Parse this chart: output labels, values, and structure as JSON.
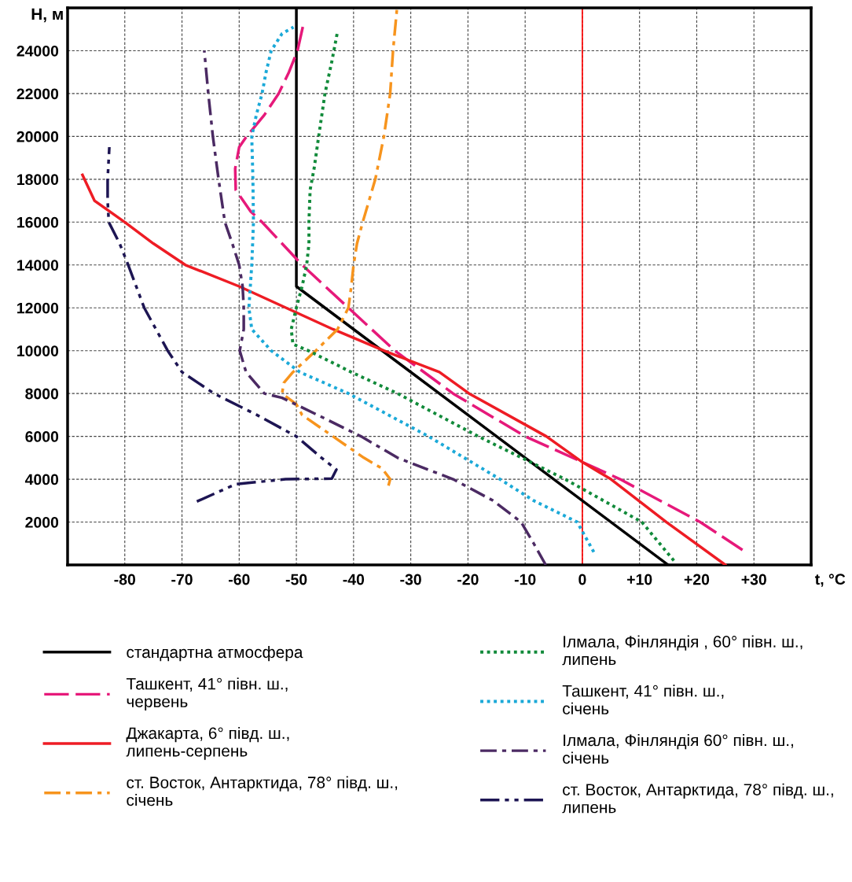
{
  "chart_data": {
    "type": "line",
    "xlabel": "t, °C",
    "ylabel": "H, м",
    "xlim": [
      -90,
      40
    ],
    "ylim": [
      0,
      26000
    ],
    "xticks": [
      -80,
      -70,
      -60,
      -50,
      -40,
      -30,
      -20,
      -10,
      0,
      {
        "value": 10,
        "label": "+10"
      },
      {
        "value": 20,
        "label": "+20"
      },
      {
        "value": 30,
        "label": "+30"
      }
    ],
    "yticks": [
      2000,
      4000,
      6000,
      8000,
      10000,
      12000,
      14000,
      16000,
      18000,
      20000,
      22000,
      24000
    ],
    "grid": true,
    "legend": "bottom",
    "marker": "none",
    "ref_lines": [
      {
        "axis": "x",
        "value": 0,
        "label": null,
        "color": "#ff0000",
        "line_style": "solid"
      }
    ],
    "series": [
      {
        "name": "стандартна атмосфера",
        "color": "#000000",
        "line_style": "solid",
        "x": [
          15,
          -50,
          -50
        ],
        "values": [
          0,
          13000,
          26000
        ]
      },
      {
        "name": "Ташкент, 41° півн. ш.,\nчервень",
        "color": "#e6197a",
        "line_style": "dashed",
        "x": [
          28,
          20.6,
          6.6,
          0,
          -10,
          -22.6,
          -32.8,
          -40.9,
          -49,
          -56,
          -58,
          -60.6,
          -60.7,
          -60,
          -58.7,
          -55.6,
          -53.1,
          -51.3,
          -49.8,
          -48.8
        ],
        "values": [
          700,
          2000,
          4000,
          4800,
          6000,
          8000,
          10000,
          12000,
          14000,
          16000,
          16500,
          17500,
          18500,
          19500,
          20000,
          21000,
          22000,
          23000,
          24000,
          25200
        ]
      },
      {
        "name": "Джакарта, 6° півд. ш.,\nлипень-серпень",
        "color": "#ee1c24",
        "line_style": "solid",
        "x": [
          25,
          14.7,
          5,
          0,
          -6.3,
          -19.8,
          -25,
          -34.7,
          -43.6,
          -51.8,
          -60,
          -69.4,
          -75,
          -80,
          -85.3,
          -87.4
        ],
        "values": [
          0,
          2000,
          4000,
          4800,
          6000,
          8000,
          9000,
          10000,
          11000,
          12000,
          13000,
          14000,
          15000,
          16000,
          17000,
          18200
        ]
      },
      {
        "name": "ст. Восток, Антарктида, 78° півд. ш.,\nсічень",
        "color": "#f7941d",
        "line_style": "dashdot",
        "x": [
          -33.9,
          -33.6,
          -35,
          -38.2,
          -43.6,
          -49,
          -50,
          -52.5,
          -52.2,
          -50.6,
          -46.6,
          -42.8,
          -40.9,
          -40.4,
          -40,
          -39.4,
          -38.4,
          -36.2,
          -34.7,
          -33.6,
          -33.1,
          -32.4
        ],
        "values": [
          3700,
          4000,
          4500,
          5000,
          6000,
          7000,
          7500,
          8000,
          8500,
          9000,
          10000,
          11000,
          12000,
          13000,
          14000,
          15000,
          16000,
          18000,
          20000,
          22000,
          24000,
          26000
        ]
      },
      {
        "name": "Ілмала, Фінляндія , 60° півн. ш.,\nлипень",
        "color": "#118a3a",
        "line_style": "dotted",
        "x": [
          16,
          10.4,
          -3,
          -18.2,
          -32.3,
          -40.4,
          -47.9,
          -50.6,
          -50.9,
          -50,
          -49,
          -48.2,
          -47.8,
          -47.8,
          -47.6,
          -46.9,
          -46.1,
          -45,
          -43.8,
          -42.8
        ],
        "values": [
          200,
          2000,
          4000,
          6000,
          8000,
          9000,
          10000,
          10300,
          11000,
          12000,
          13000,
          14000,
          15000,
          16000,
          17500,
          18500,
          20000,
          22000,
          23500,
          24900
        ]
      },
      {
        "name": "Ташкент, 41° півн. ш.,\nсічень",
        "color": "#1ba9d8",
        "line_style": "dotted",
        "x": [
          2,
          -0.9,
          -8.5,
          -14.4,
          -26.9,
          -40.9,
          -49.4,
          -54.4,
          -57.8,
          -58.3,
          -57.8,
          -57.5,
          -57.6,
          -57.8,
          -57,
          -56,
          -55.3,
          -54.4,
          -52.5,
          -50.5
        ],
        "values": [
          600,
          2000,
          3000,
          4000,
          6000,
          8000,
          9000,
          10000,
          11000,
          12000,
          14000,
          16000,
          18000,
          20000,
          21000,
          22000,
          23000,
          24000,
          24800,
          25100
        ]
      },
      {
        "name": "Ілмала, Фінляндія 60° півн. ш.,\nсічень",
        "color": "#4b2a63",
        "line_style": "dashdot",
        "x": [
          -6.4,
          -8.5,
          -10.7,
          -15.6,
          -22.6,
          -32.3,
          -38.7,
          -46.3,
          -52.5,
          -55.6,
          -58.8,
          -59.9,
          -59.2,
          -59.2,
          -59.4,
          -60,
          -61.2,
          -62.5,
          -63.6,
          -64.6,
          -65.4,
          -66.1
        ],
        "values": [
          0,
          1000,
          2000,
          3000,
          4000,
          5000,
          6000,
          7000,
          7800,
          8000,
          9000,
          10000,
          11000,
          12000,
          13000,
          14000,
          15000,
          16000,
          18000,
          20000,
          22000,
          24000
        ]
      },
      {
        "name": "ст. Восток, Антарктида, 78° півд. ш.,\nлипень",
        "color": "#1d1553",
        "line_style": "dashdotdot",
        "x": [
          -67.4,
          -60.6,
          -51.9,
          -43.8,
          -43,
          -45.6,
          -50,
          -56.9,
          -64.4,
          -70,
          -72.5,
          -76.6,
          -79.4,
          -80.9,
          -82.8,
          -83,
          -83,
          -82.7
        ],
        "values": [
          2960,
          3770,
          4000,
          4030,
          4450,
          5000,
          6000,
          7000,
          8000,
          9000,
          10000,
          12000,
          14000,
          15000,
          16000,
          17000,
          18000,
          19500
        ]
      }
    ]
  }
}
